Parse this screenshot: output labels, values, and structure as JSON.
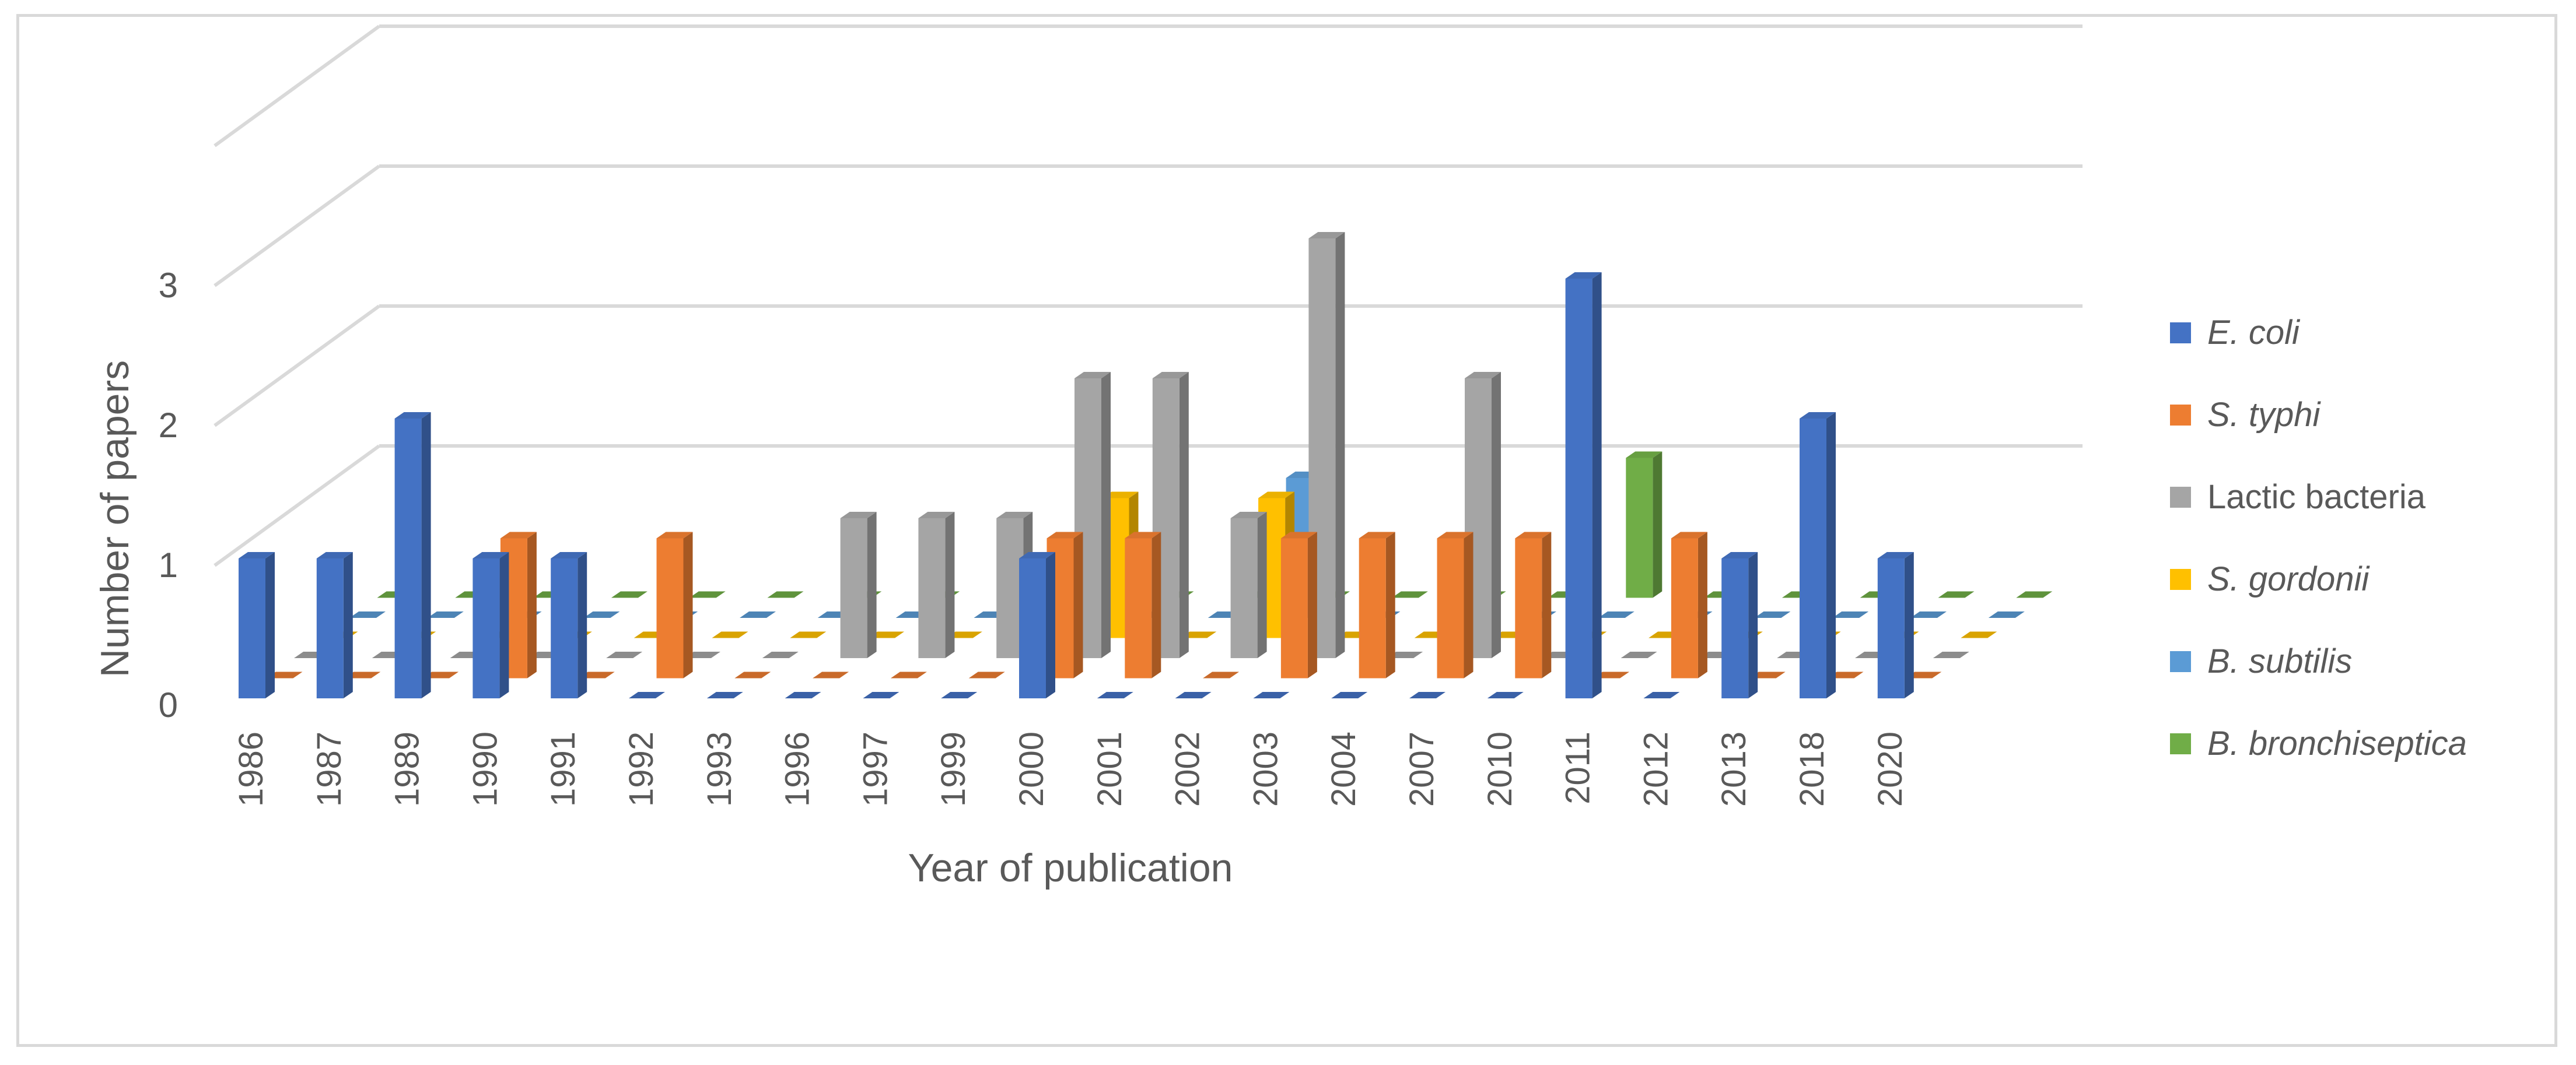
{
  "chart_data": {
    "type": "bar",
    "style": "3d-column",
    "title": "",
    "xlabel": "Year of publication",
    "ylabel": "Number of papers",
    "ylim": [
      0,
      3
    ],
    "yticks": [
      0,
      1,
      2,
      3
    ],
    "grid": true,
    "legend_position": "right",
    "categories": [
      "1986",
      "1987",
      "1989",
      "1990",
      "1991",
      "1992",
      "1993",
      "1996",
      "1997",
      "1999",
      "2000",
      "2001",
      "2002",
      "2003",
      "2004",
      "2007",
      "2010",
      "2011",
      "2012",
      "2013",
      "2018",
      "2020"
    ],
    "series": [
      {
        "name": "E. coli",
        "italic": true,
        "color": "#4472C4",
        "values": [
          1,
          1,
          2,
          1,
          1,
          0,
          0,
          0,
          0,
          0,
          1,
          0,
          0,
          0,
          0,
          0,
          0,
          3,
          0,
          1,
          2,
          1
        ]
      },
      {
        "name": "S. typhi",
        "italic": true,
        "color": "#ED7D31",
        "values": [
          0,
          0,
          0,
          1,
          0,
          1,
          0,
          0,
          0,
          0,
          1,
          1,
          0,
          1,
          1,
          1,
          1,
          0,
          1,
          0,
          0,
          0
        ]
      },
      {
        "name": "Lactic bacteria",
        "italic": false,
        "color": "#A5A5A5",
        "values": [
          0,
          0,
          0,
          0,
          0,
          0,
          0,
          1,
          1,
          1,
          2,
          2,
          1,
          3,
          0,
          2,
          0,
          0,
          0,
          0,
          0,
          0
        ]
      },
      {
        "name": "S. gordonii",
        "italic": true,
        "color": "#FFC000",
        "values": [
          0,
          0,
          0,
          0,
          0,
          0,
          0,
          0,
          0,
          0,
          1,
          0,
          1,
          0,
          0,
          0,
          0,
          0,
          0,
          0,
          0,
          0
        ]
      },
      {
        "name": "B. subtilis",
        "italic": true,
        "color": "#5B9BD5",
        "values": [
          0,
          0,
          0,
          0,
          0,
          0,
          0,
          0,
          0,
          0,
          0,
          0,
          1,
          0,
          0,
          0,
          0,
          0,
          0,
          0,
          0,
          0
        ]
      },
      {
        "name": "B. bronchiseptica",
        "italic": true,
        "color": "#70AD47",
        "values": [
          0,
          0,
          0,
          0,
          0,
          0,
          0,
          0,
          0,
          0,
          0,
          0,
          0,
          0,
          0,
          0,
          1,
          0,
          0,
          0,
          0,
          0
        ]
      }
    ]
  }
}
